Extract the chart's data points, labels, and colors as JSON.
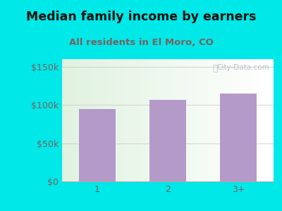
{
  "title": "Median family income by earners",
  "subtitle": "All residents in El Moro, CO",
  "categories": [
    "1",
    "2",
    "3+"
  ],
  "values": [
    95000,
    107000,
    115000
  ],
  "bar_color": "#b49ac8",
  "title_color": "#111111",
  "subtitle_color": "#7a6060",
  "outer_bg": "#00e8e8",
  "yticks": [
    0,
    50000,
    100000,
    150000
  ],
  "ytick_labels": [
    "$0",
    "$50k",
    "$100k",
    "$150k"
  ],
  "ylim": [
    0,
    160000
  ],
  "watermark": "City-Data.com",
  "title_fontsize": 12.5,
  "subtitle_fontsize": 9.5,
  "tick_color": "#7a6060",
  "tick_fontsize": 9
}
